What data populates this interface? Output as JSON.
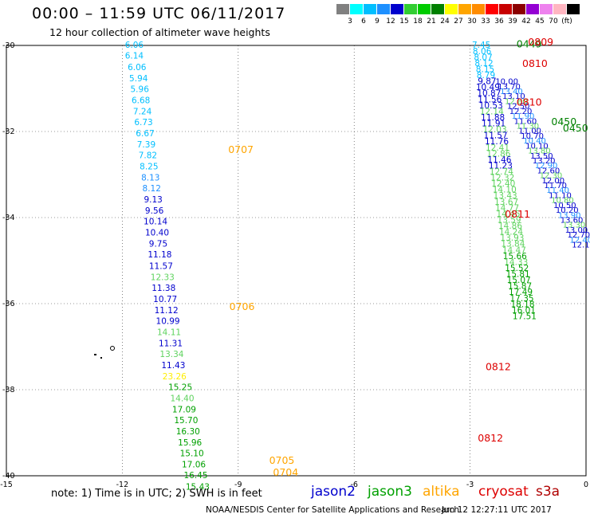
{
  "header": {
    "title": "00:00 – 11:59 UTC 06/11/2017",
    "subtitle": "12 hour collection of altimeter wave heights"
  },
  "scale": {
    "colors": [
      "#808080",
      "#00ffff",
      "#00bfff",
      "#1e90ff",
      "#0000cd",
      "#32cd32",
      "#00cc00",
      "#008000",
      "#ffff00",
      "#ffa500",
      "#ff8c00",
      "#ff0000",
      "#c80000",
      "#8b0000",
      "#9400d3",
      "#ee82ee",
      "#ffb6c1",
      "#000000"
    ],
    "labels": [
      "3",
      "6",
      "9",
      "12",
      "15",
      "18",
      "21",
      "24",
      "27",
      "30",
      "33",
      "36",
      "39",
      "42",
      "45",
      "70",
      "(ft)"
    ]
  },
  "note": "note: 1) Time is in UTC; 2) SWH is in feet",
  "legend": [
    {
      "name": "jason2",
      "color": "#0000cd"
    },
    {
      "name": "jason3",
      "color": "#00a000"
    },
    {
      "name": "altika",
      "color": "#ffa500"
    },
    {
      "name": "cryosat",
      "color": "#dd0000"
    },
    {
      "name": "s3a",
      "color": "#b00000"
    }
  ],
  "credit": "NOAA/NESDIS Center for Satellite Applications and Research",
  "timestamp": "Jun 12 12:27:11 UTC 2017",
  "chart_data": {
    "type": "scatter",
    "xlim": [
      -15,
      0
    ],
    "ylim": [
      -40,
      -30
    ],
    "x_ticks": [
      "-15",
      "-12",
      "-9",
      "-6",
      "-3",
      "0"
    ],
    "y_ticks": [
      "-30",
      "-32",
      "-34",
      "-36",
      "-38",
      "-40"
    ],
    "grid": "dashed",
    "annotations": [
      {
        "text": "0707",
        "lon": -9.26,
        "lat": -32.5,
        "color": "#ffa500"
      },
      {
        "text": "0706",
        "lon": -9.23,
        "lat": -36.15,
        "color": "#ffa500"
      },
      {
        "text": "0705",
        "lon": -8.2,
        "lat": -39.72,
        "color": "#ffa500"
      },
      {
        "text": "0704",
        "lon": -8.1,
        "lat": -40.0,
        "color": "#ffa500"
      },
      {
        "text": "0810",
        "lon": -1.65,
        "lat": -30.5,
        "color": "#dd0000"
      },
      {
        "text": "0810",
        "lon": -1.8,
        "lat": -31.4,
        "color": "#dd0000"
      },
      {
        "text": "0811",
        "lon": -2.1,
        "lat": -34.0,
        "color": "#dd0000"
      },
      {
        "text": "0812",
        "lon": -2.6,
        "lat": -37.55,
        "color": "#dd0000"
      },
      {
        "text": "0812",
        "lon": -2.8,
        "lat": -39.2,
        "color": "#dd0000"
      },
      {
        "text": "0450",
        "lon": -0.9,
        "lat": -31.85,
        "color": "#008000"
      },
      {
        "text": "0450",
        "lon": -0.6,
        "lat": -32.0,
        "color": "#008000"
      },
      {
        "text": "0449",
        "lon": -1.8,
        "lat": -30.05,
        "color": "#008000"
      },
      {
        "text": "0809",
        "lon": -1.5,
        "lat": -30.0,
        "color": "#dd0000"
      }
    ],
    "series": [
      {
        "points": [
          {
            "lon": -11.69,
            "lat": -30.06,
            "v": "6.06",
            "c": "#00bfff"
          },
          {
            "lon": -11.69,
            "lat": -30.31,
            "v": "6.14",
            "c": "#00bfff"
          },
          {
            "lon": -11.62,
            "lat": -30.57,
            "v": "6.06",
            "c": "#00bfff"
          },
          {
            "lon": -11.58,
            "lat": -30.83,
            "v": "5.94",
            "c": "#00bfff"
          },
          {
            "lon": -11.55,
            "lat": -31.08,
            "v": "5.96",
            "c": "#00bfff"
          },
          {
            "lon": -11.52,
            "lat": -31.34,
            "v": "6.68",
            "c": "#00bfff"
          },
          {
            "lon": -11.48,
            "lat": -31.6,
            "v": "7.24",
            "c": "#00bfff"
          },
          {
            "lon": -11.45,
            "lat": -31.85,
            "v": "6.73",
            "c": "#00bfff"
          },
          {
            "lon": -11.41,
            "lat": -32.11,
            "v": "6.67",
            "c": "#00bfff"
          },
          {
            "lon": -11.38,
            "lat": -32.37,
            "v": "7.39",
            "c": "#00bfff"
          },
          {
            "lon": -11.34,
            "lat": -32.62,
            "v": "7.82",
            "c": "#00bfff"
          },
          {
            "lon": -11.31,
            "lat": -32.88,
            "v": "8.25",
            "c": "#00bfff"
          },
          {
            "lon": -11.27,
            "lat": -33.14,
            "v": "8.13",
            "c": "#1e90ff"
          },
          {
            "lon": -11.24,
            "lat": -33.39,
            "v": "8.12",
            "c": "#1e90ff"
          },
          {
            "lon": -11.2,
            "lat": -33.65,
            "v": "9.13",
            "c": "#0000cd"
          },
          {
            "lon": -11.17,
            "lat": -33.91,
            "v": "9.56",
            "c": "#0000cd"
          },
          {
            "lon": -11.14,
            "lat": -34.16,
            "v": "10.14",
            "c": "#0000cd"
          },
          {
            "lon": -11.1,
            "lat": -34.42,
            "v": "10.40",
            "c": "#0000cd"
          },
          {
            "lon": -11.07,
            "lat": -34.68,
            "v": "9.75",
            "c": "#0000cd"
          },
          {
            "lon": -11.03,
            "lat": -34.93,
            "v": "11.18",
            "c": "#0000cd"
          },
          {
            "lon": -11.0,
            "lat": -35.19,
            "v": "11.57",
            "c": "#0000cd"
          },
          {
            "lon": -10.96,
            "lat": -35.45,
            "v": "12.33",
            "c": "#5fd35f"
          },
          {
            "lon": -10.93,
            "lat": -35.7,
            "v": "11.38",
            "c": "#0000cd"
          },
          {
            "lon": -10.89,
            "lat": -35.96,
            "v": "10.77",
            "c": "#0000cd"
          },
          {
            "lon": -10.86,
            "lat": -36.22,
            "v": "11.12",
            "c": "#0000cd"
          },
          {
            "lon": -10.82,
            "lat": -36.47,
            "v": "10.99",
            "c": "#0000cd"
          },
          {
            "lon": -10.79,
            "lat": -36.73,
            "v": "14.11",
            "c": "#5fd35f"
          },
          {
            "lon": -10.75,
            "lat": -36.99,
            "v": "11.31",
            "c": "#0000cd"
          },
          {
            "lon": -10.72,
            "lat": -37.24,
            "v": "13.34",
            "c": "#5fd35f"
          },
          {
            "lon": -10.68,
            "lat": -37.5,
            "v": "11.43",
            "c": "#0000cd"
          },
          {
            "lon": -10.65,
            "lat": -37.76,
            "v": "23.26",
            "c": "#ffee00"
          },
          {
            "lon": -10.5,
            "lat": -38.01,
            "v": "15.25",
            "c": "#00a000"
          },
          {
            "lon": -10.45,
            "lat": -38.27,
            "v": "14.40",
            "c": "#5fd35f"
          },
          {
            "lon": -10.4,
            "lat": -38.53,
            "v": "17.09",
            "c": "#00a000"
          },
          {
            "lon": -10.35,
            "lat": -38.78,
            "v": "15.70",
            "c": "#00a000"
          },
          {
            "lon": -10.3,
            "lat": -39.04,
            "v": "16.30",
            "c": "#00a000"
          },
          {
            "lon": -10.25,
            "lat": -39.3,
            "v": "15.96",
            "c": "#00a000"
          },
          {
            "lon": -10.2,
            "lat": -39.55,
            "v": "15.10",
            "c": "#00a000"
          },
          {
            "lon": -10.15,
            "lat": -39.81,
            "v": "17.06",
            "c": "#00a000"
          },
          {
            "lon": -10.1,
            "lat": -40.06,
            "v": "16.45",
            "c": "#00a000"
          },
          {
            "lon": -10.05,
            "lat": -40.32,
            "v": "15.43",
            "c": "#00a000"
          }
        ]
      },
      {
        "points": [
          {
            "lon": -2.71,
            "lat": -30.06,
            "v": "7.45",
            "c": "#00bfff"
          },
          {
            "lon": -2.69,
            "lat": -30.2,
            "v": "8.06",
            "c": "#00bfff"
          },
          {
            "lon": -2.66,
            "lat": -30.34,
            "v": "8.07",
            "c": "#00bfff"
          },
          {
            "lon": -2.64,
            "lat": -30.48,
            "v": "8.12",
            "c": "#00bfff"
          },
          {
            "lon": -2.61,
            "lat": -30.62,
            "v": "8.15",
            "c": "#00bfff"
          },
          {
            "lon": -2.59,
            "lat": -30.76,
            "v": "8.79",
            "c": "#00bfff"
          },
          {
            "lon": -2.56,
            "lat": -30.9,
            "v": "9.87",
            "c": "#0000cd"
          },
          {
            "lon": -2.54,
            "lat": -31.04,
            "v": "10.49",
            "c": "#0000cd"
          },
          {
            "lon": -2.51,
            "lat": -31.18,
            "v": "10.87",
            "c": "#0000cd"
          },
          {
            "lon": -2.49,
            "lat": -31.32,
            "v": "11.56",
            "c": "#0000cd"
          },
          {
            "lon": -2.46,
            "lat": -31.46,
            "v": "10.53",
            "c": "#0000cd"
          },
          {
            "lon": -2.44,
            "lat": -31.6,
            "v": "12.14",
            "c": "#5fd35f"
          },
          {
            "lon": -2.41,
            "lat": -31.74,
            "v": "11.88",
            "c": "#0000cd"
          },
          {
            "lon": -2.39,
            "lat": -31.88,
            "v": "11.91",
            "c": "#0000cd"
          },
          {
            "lon": -2.36,
            "lat": -32.02,
            "v": "12.03",
            "c": "#5fd35f"
          },
          {
            "lon": -2.34,
            "lat": -32.16,
            "v": "11.57",
            "c": "#0000cd"
          },
          {
            "lon": -2.31,
            "lat": -32.3,
            "v": "11.76",
            "c": "#0000cd"
          },
          {
            "lon": -2.29,
            "lat": -32.44,
            "v": "12.41",
            "c": "#5fd35f"
          },
          {
            "lon": -2.26,
            "lat": -32.58,
            "v": "12.86",
            "c": "#5fd35f"
          },
          {
            "lon": -2.24,
            "lat": -32.72,
            "v": "11.46",
            "c": "#0000cd"
          },
          {
            "lon": -2.21,
            "lat": -32.86,
            "v": "11.23",
            "c": "#0000cd"
          },
          {
            "lon": -2.19,
            "lat": -33.0,
            "v": "12.74",
            "c": "#5fd35f"
          },
          {
            "lon": -2.16,
            "lat": -33.14,
            "v": "12.32",
            "c": "#5fd35f"
          },
          {
            "lon": -2.14,
            "lat": -33.28,
            "v": "12.40",
            "c": "#5fd35f"
          },
          {
            "lon": -2.11,
            "lat": -33.42,
            "v": "14.10",
            "c": "#5fd35f"
          },
          {
            "lon": -2.09,
            "lat": -33.56,
            "v": "13.43",
            "c": "#5fd35f"
          },
          {
            "lon": -2.06,
            "lat": -33.7,
            "v": "13.67",
            "c": "#5fd35f"
          },
          {
            "lon": -2.04,
            "lat": -33.84,
            "v": "14.77",
            "c": "#5fd35f"
          },
          {
            "lon": -2.01,
            "lat": -33.98,
            "v": "14.45",
            "c": "#5fd35f"
          },
          {
            "lon": -1.99,
            "lat": -34.12,
            "v": "13.59",
            "c": "#5fd35f"
          },
          {
            "lon": -1.96,
            "lat": -34.26,
            "v": "14.86",
            "c": "#5fd35f"
          },
          {
            "lon": -1.94,
            "lat": -34.4,
            "v": "14.24",
            "c": "#5fd35f"
          },
          {
            "lon": -1.91,
            "lat": -34.54,
            "v": "13.93",
            "c": "#5fd35f"
          },
          {
            "lon": -1.89,
            "lat": -34.68,
            "v": "13.84",
            "c": "#5fd35f"
          },
          {
            "lon": -1.86,
            "lat": -34.82,
            "v": "14.47",
            "c": "#5fd35f"
          },
          {
            "lon": -1.84,
            "lat": -34.96,
            "v": "15.66",
            "c": "#00a000"
          },
          {
            "lon": -1.81,
            "lat": -35.1,
            "v": "14.33",
            "c": "#5fd35f"
          },
          {
            "lon": -1.79,
            "lat": -35.24,
            "v": "15.52",
            "c": "#00a000"
          },
          {
            "lon": -1.76,
            "lat": -35.38,
            "v": "15.81",
            "c": "#00a000"
          },
          {
            "lon": -1.74,
            "lat": -35.52,
            "v": "15.07",
            "c": "#00a000"
          },
          {
            "lon": -1.71,
            "lat": -35.66,
            "v": "15.87",
            "c": "#00a000"
          },
          {
            "lon": -1.69,
            "lat": -35.8,
            "v": "17.49",
            "c": "#00a000"
          },
          {
            "lon": -1.66,
            "lat": -35.94,
            "v": "17.35",
            "c": "#00a000"
          },
          {
            "lon": -1.64,
            "lat": -36.08,
            "v": "18.18",
            "c": "#00a000"
          },
          {
            "lon": -1.61,
            "lat": -36.22,
            "v": "16.01",
            "c": "#00a000"
          },
          {
            "lon": -1.59,
            "lat": -36.36,
            "v": "17.51",
            "c": "#00a000"
          }
        ]
      }
    ]
  }
}
